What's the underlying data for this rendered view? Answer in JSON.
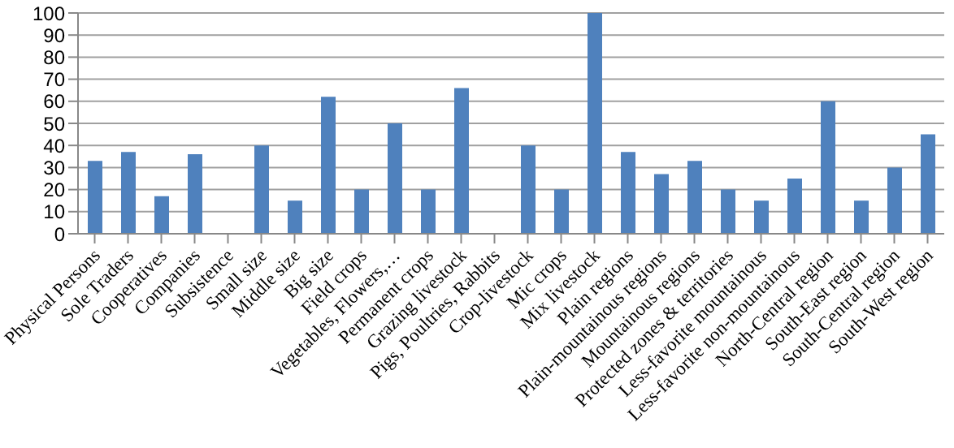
{
  "chart_data": {
    "type": "bar",
    "categories": [
      "Physical Persons",
      "Sole Traders",
      "Cooperatives",
      "Companies",
      "Subsistence",
      "Small size",
      "Middle size",
      "Big size",
      "Field crops",
      "Vegetables, Flowers,…",
      "Permanent crops",
      "Grazing livestock",
      "Pigs, Poultries, Rabbits",
      "Crop-livestock",
      "Mic crops",
      "Mix livestock",
      "Plain regions",
      "Plain-mountainous regions",
      "Mountainous regions",
      "Protected zones & territories",
      "Less-favorite mountainous",
      "Less-favorite non-mountainous",
      "North-Central region",
      "South-East region",
      "South-Central region",
      "South-West region"
    ],
    "values": [
      33,
      37,
      17,
      36,
      0,
      40,
      15,
      62,
      20,
      50,
      20,
      66,
      0,
      40,
      20,
      100,
      37,
      27,
      33,
      20,
      15,
      25,
      60,
      15,
      30,
      45
    ],
    "color": "#4f81bd",
    "ylim": [
      0,
      100
    ],
    "yticks": [
      0,
      10,
      20,
      30,
      40,
      50,
      60,
      70,
      80,
      90,
      100
    ],
    "grid": "y"
  }
}
